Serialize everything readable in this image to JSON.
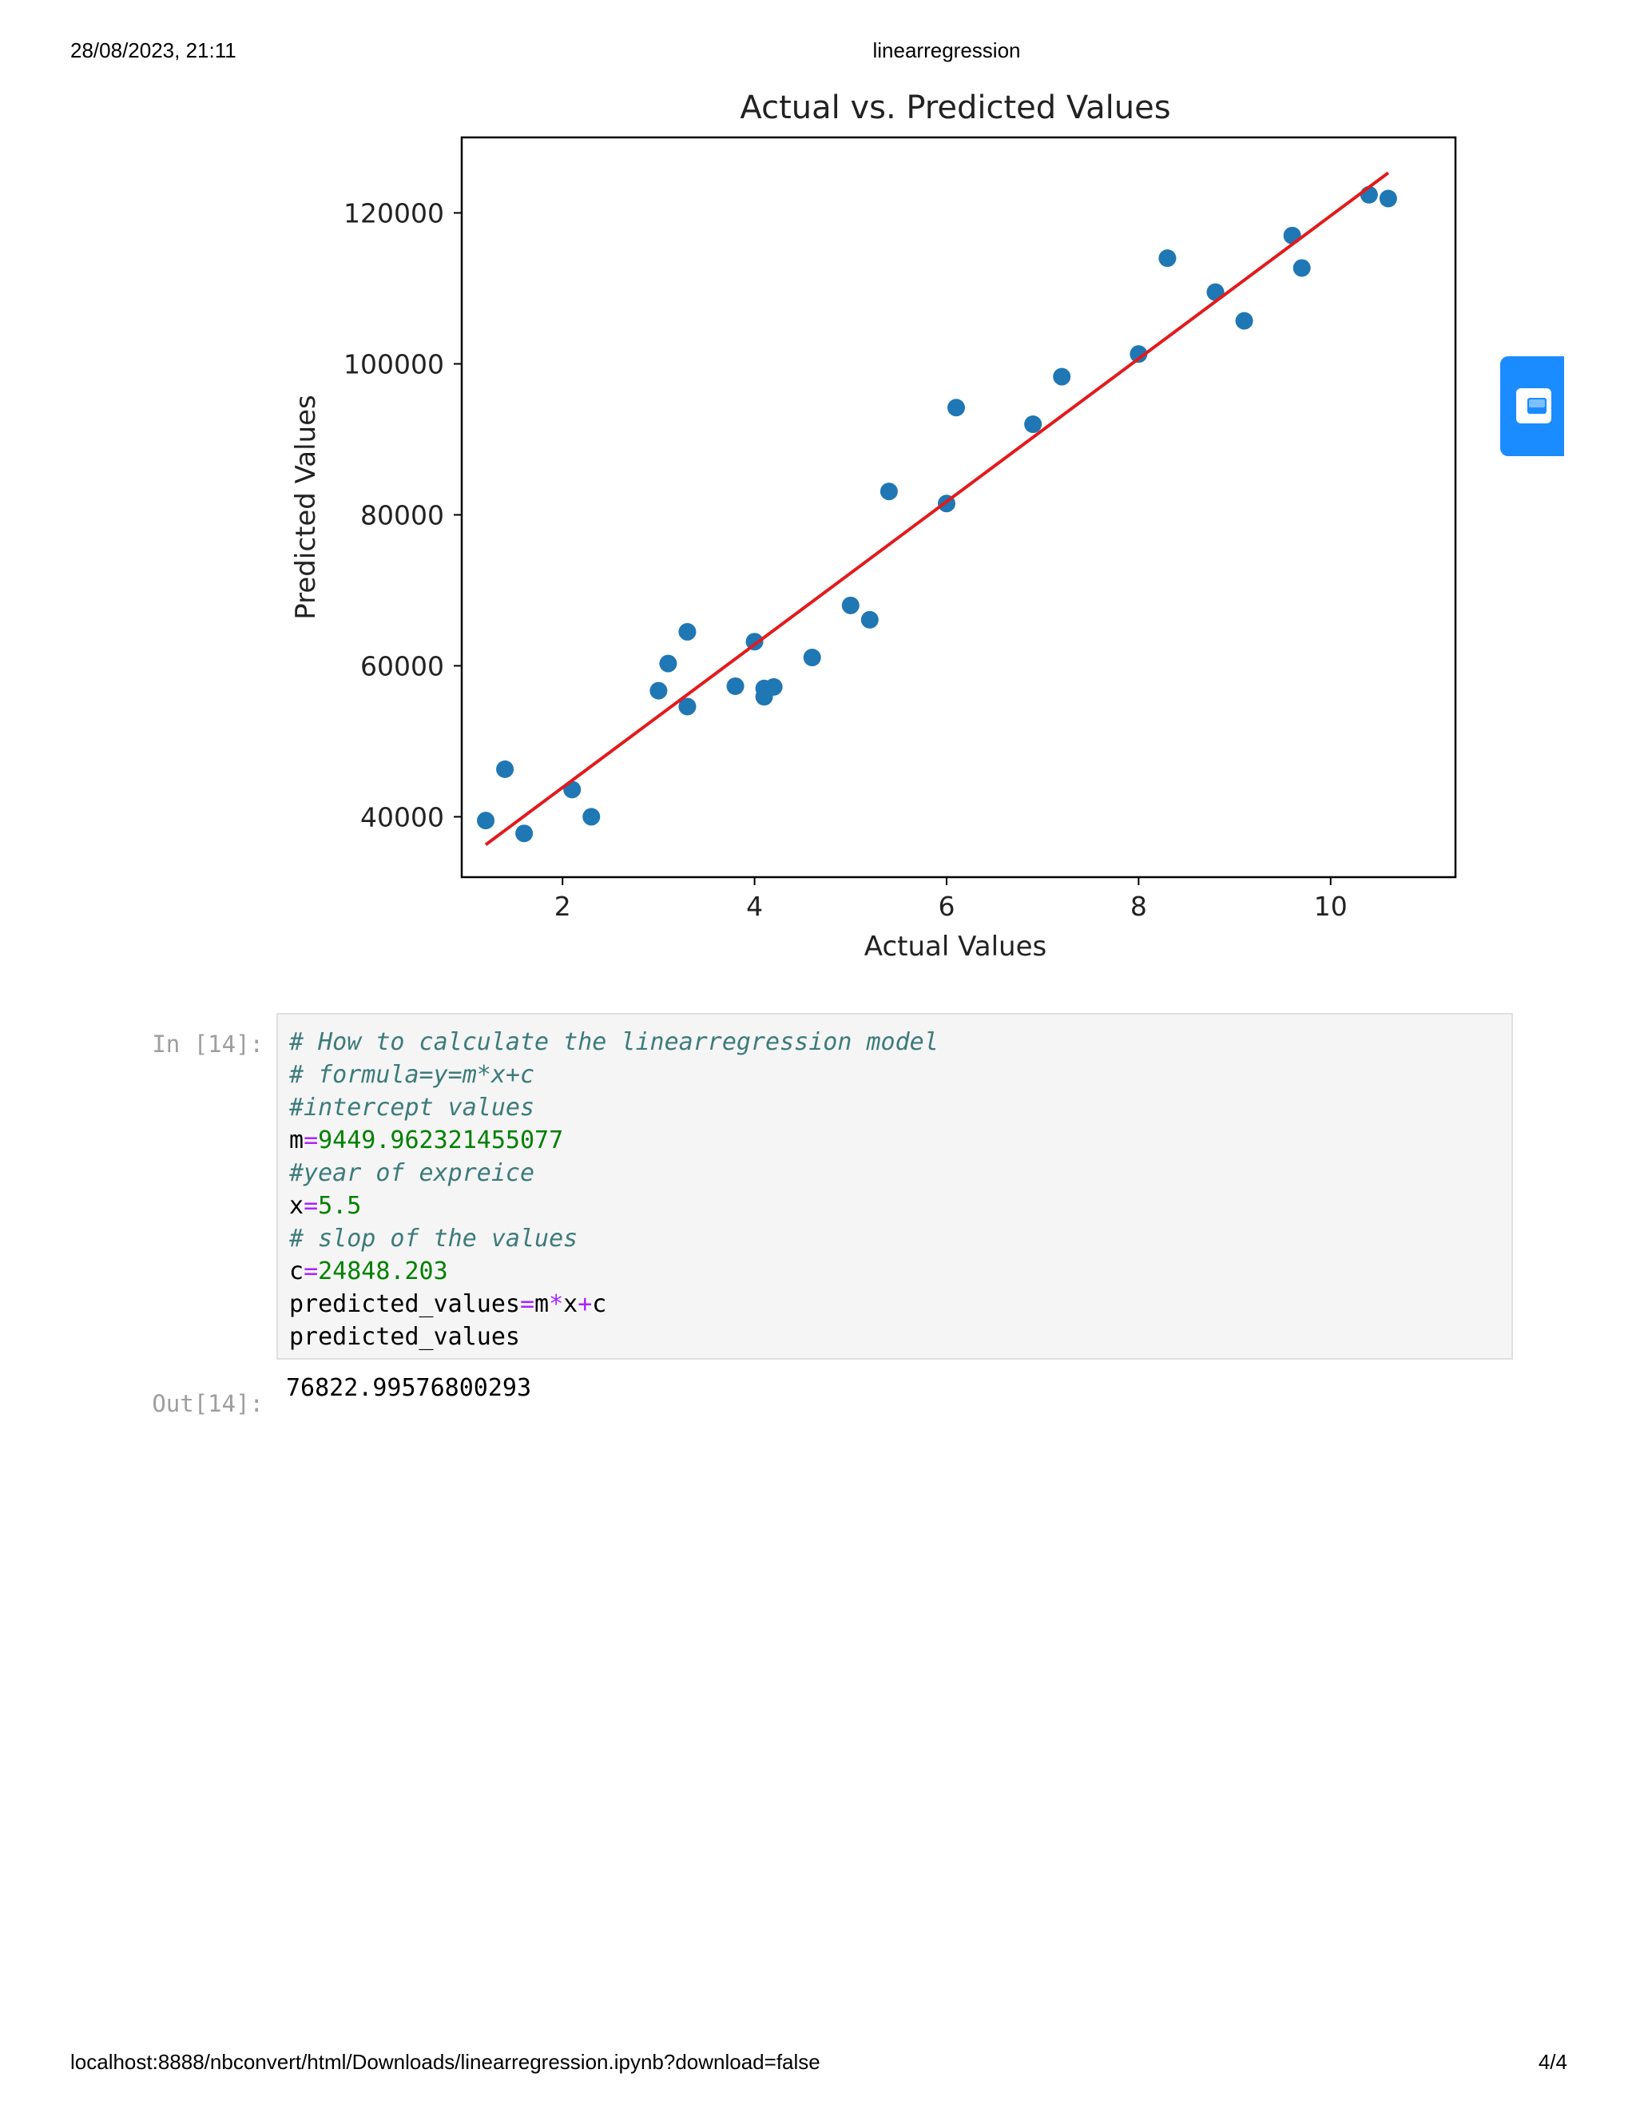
{
  "print_header": {
    "date": "28/08/2023, 21:11",
    "title": "linearregression"
  },
  "print_footer": {
    "url": "localhost:8888/nbconvert/html/Downloads/linearregression.ipynb?download=false",
    "page": "4/4"
  },
  "side_widget": {
    "icon": "app-widget-icon",
    "color": "#1a8cff"
  },
  "chart_data": {
    "type": "scatter",
    "title": "Actual vs. Predicted Values",
    "xlabel": "Actual Values",
    "ylabel": "Predicted Values",
    "xlim": [
      0.95,
      11.3
    ],
    "ylim": [
      32000,
      130000
    ],
    "xticks": [
      2,
      4,
      6,
      8,
      10
    ],
    "yticks": [
      40000,
      60000,
      80000,
      100000,
      120000
    ],
    "grid": false,
    "point_color": "#1f77b4",
    "line_color": "#e31a1c",
    "points": [
      [
        1.2,
        39500
      ],
      [
        1.4,
        46300
      ],
      [
        1.6,
        37800
      ],
      [
        2.1,
        43600
      ],
      [
        2.3,
        40000
      ],
      [
        3.0,
        56700
      ],
      [
        3.1,
        60300
      ],
      [
        3.3,
        54600
      ],
      [
        3.3,
        64500
      ],
      [
        3.8,
        57300
      ],
      [
        4.0,
        63200
      ],
      [
        4.1,
        57000
      ],
      [
        4.1,
        55900
      ],
      [
        4.2,
        57200
      ],
      [
        4.6,
        61100
      ],
      [
        5.0,
        68000
      ],
      [
        5.2,
        66100
      ],
      [
        5.4,
        83100
      ],
      [
        6.0,
        81500
      ],
      [
        6.1,
        94200
      ],
      [
        6.9,
        92000
      ],
      [
        7.2,
        98300
      ],
      [
        8.0,
        101300
      ],
      [
        8.3,
        114000
      ],
      [
        8.8,
        109500
      ],
      [
        9.1,
        105700
      ],
      [
        9.6,
        117000
      ],
      [
        9.7,
        112700
      ],
      [
        10.4,
        122400
      ],
      [
        10.6,
        121900
      ]
    ],
    "regression_line": {
      "x": [
        1.2,
        10.6
      ],
      "y": [
        36300,
        125300
      ]
    }
  },
  "cell": {
    "in_prompt": "In [14]:",
    "out_prompt": "Out[14]:",
    "code_lines": [
      [
        {
          "t": "comment",
          "v": "# How to calculate the linearregression model"
        }
      ],
      [
        {
          "t": "comment",
          "v": "# formula=y=m*x+c"
        }
      ],
      [
        {
          "t": "comment",
          "v": "#intercept values"
        }
      ],
      [
        {
          "t": "name",
          "v": "m"
        },
        {
          "t": "op",
          "v": "="
        },
        {
          "t": "num",
          "v": "9449.962321455077"
        }
      ],
      [
        {
          "t": "comment",
          "v": "#year of expreice"
        }
      ],
      [
        {
          "t": "name",
          "v": "x"
        },
        {
          "t": "op",
          "v": "="
        },
        {
          "t": "num",
          "v": "5.5"
        }
      ],
      [
        {
          "t": "comment",
          "v": "# slop of the values"
        }
      ],
      [
        {
          "t": "name",
          "v": "c"
        },
        {
          "t": "op",
          "v": "="
        },
        {
          "t": "num",
          "v": "24848.203"
        }
      ],
      [
        {
          "t": "name",
          "v": "predicted_values"
        },
        {
          "t": "op",
          "v": "="
        },
        {
          "t": "name",
          "v": "m"
        },
        {
          "t": "op",
          "v": "*"
        },
        {
          "t": "name",
          "v": "x"
        },
        {
          "t": "op",
          "v": "+"
        },
        {
          "t": "name",
          "v": "c"
        }
      ],
      [
        {
          "t": "name",
          "v": "predicted_values"
        }
      ]
    ],
    "output": "76822.99576800293"
  }
}
